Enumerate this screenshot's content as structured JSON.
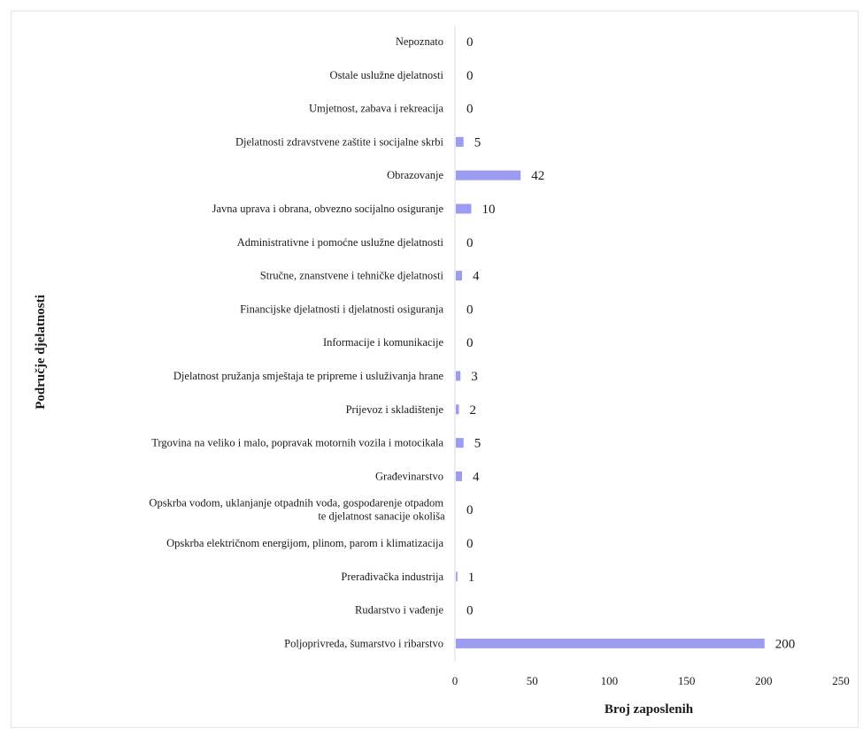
{
  "chart_data": {
    "type": "bar",
    "orientation": "horizontal",
    "title": "",
    "xlabel": "Broj zaposlenih",
    "ylabel": "Područje djelatnosti",
    "xlim": [
      0,
      250
    ],
    "xticks": [
      0,
      50,
      100,
      150,
      200,
      250
    ],
    "grid": false,
    "bar_color": "#9c9cf0",
    "categories": [
      [
        "Nepoznato"
      ],
      [
        "Ostale uslužne djelatnosti"
      ],
      [
        "Umjetnost, zabava i rekreacija"
      ],
      [
        "Djelatnosti zdravstvene zaštite i socijalne skrbi"
      ],
      [
        "Obrazovanje"
      ],
      [
        "Javna uprava i obrana, obvezno socijalno osiguranje"
      ],
      [
        "Administrativne i pomoćne uslužne djelatnosti"
      ],
      [
        "Stručne, znanstvene i tehničke djelatnosti"
      ],
      [
        "Financijske djelatnosti i djelatnosti osiguranja"
      ],
      [
        "Informacije i komunikacije"
      ],
      [
        "Djelatnost pružanja smještaja te pripreme i usluživanja hrane"
      ],
      [
        "Prijevoz i skladištenje"
      ],
      [
        "Trgovina na veliko i malo, popravak motornih vozila i motocikala"
      ],
      [
        "Građevinarstvo"
      ],
      [
        "Opskrba vodom, uklanjanje otpadnih voda, gospodarenje otpadom",
        "te djelatnost sanacije okoliša"
      ],
      [
        "Opskrba električnom energijom, plinom, parom i klimatizacija"
      ],
      [
        "Prerađivačka industrija"
      ],
      [
        "Rudarstvo i vađenje"
      ],
      [
        "Poljoprivreda, šumarstvo i ribarstvo"
      ]
    ],
    "values": [
      0,
      0,
      0,
      5,
      42,
      10,
      0,
      4,
      0,
      0,
      3,
      2,
      5,
      4,
      0,
      0,
      1,
      0,
      200
    ]
  }
}
